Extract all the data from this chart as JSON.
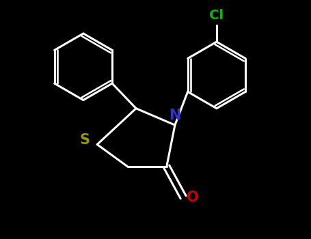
{
  "background_color": "#000000",
  "bond_color": "#ffffff",
  "sulfur_color": "#999900",
  "nitrogen_color": "#3333cc",
  "oxygen_color": "#cc0000",
  "chlorine_color": "#00bb00",
  "bond_width": 2.2,
  "fig_width": 4.55,
  "fig_height": 3.5,
  "dpi": 100,
  "xlim": [
    -2.8,
    2.8
  ],
  "ylim": [
    -1.8,
    2.2
  ]
}
